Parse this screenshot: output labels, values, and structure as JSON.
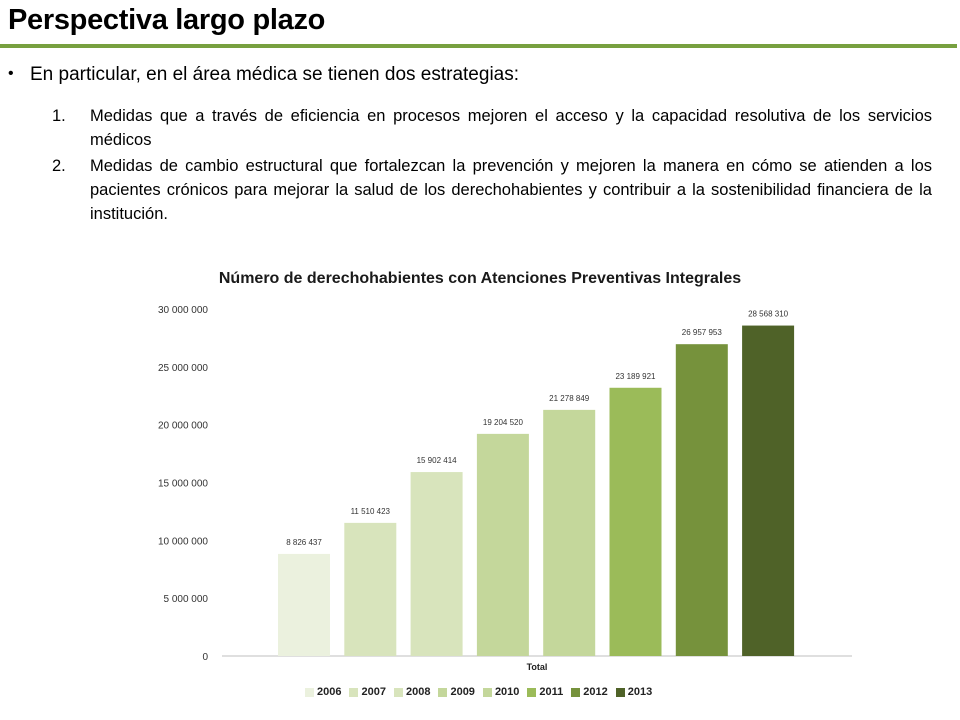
{
  "page": {
    "title": "Perspectiva largo plazo",
    "bullet": "En particular, en el área médica se tienen dos estrategias:",
    "items": [
      {
        "num": "1.",
        "text": "Medidas que a través de eficiencia en procesos mejoren el acceso y la capacidad resolutiva de los servicios médicos"
      },
      {
        "num": "2.",
        "text": "Medidas de cambio estructural que fortalezcan la prevención y mejoren la manera en cómo se atienden a los pacientes crónicos para mejorar la salud de los derechohabientes  y contribuir a la sostenibilidad financiera de la institución."
      }
    ],
    "accent_color": "#77a03f"
  },
  "chart_data": {
    "type": "bar",
    "title": "Número de derechohabientes con Atenciones Preventivas Integrales",
    "xlabel": "Total",
    "ylabel": "",
    "categories": [
      "Total"
    ],
    "ylim": [
      0,
      30000000
    ],
    "yticks": [
      "0",
      "5 000 000",
      "10 000 000",
      "15 000 000",
      "20 000 000",
      "25 000 000",
      "30 000 000"
    ],
    "ytick_values": [
      0,
      5000000,
      10000000,
      15000000,
      20000000,
      25000000,
      30000000
    ],
    "legend_position": "bottom",
    "grid": false,
    "series": [
      {
        "name": "2006",
        "values": [
          8826437
        ],
        "label": "8 826 437",
        "color": "#ebf1de"
      },
      {
        "name": "2007",
        "values": [
          11510423
        ],
        "label": "11 510 423",
        "color": "#d8e4bc"
      },
      {
        "name": "2008",
        "values": [
          15902414
        ],
        "label": "15 902 414",
        "color": "#d8e4bc"
      },
      {
        "name": "2009",
        "values": [
          19204520
        ],
        "label": "19 204 520",
        "color": "#c4d79b"
      },
      {
        "name": "2010",
        "values": [
          21278849
        ],
        "label": "21 278 849",
        "color": "#c4d79b"
      },
      {
        "name": "2011",
        "values": [
          23189921
        ],
        "label": "23 189 921",
        "color": "#9bbb59"
      },
      {
        "name": "2012",
        "values": [
          26957953
        ],
        "label": "26 957 953",
        "color": "#76923c"
      },
      {
        "name": "2013",
        "values": [
          28568310
        ],
        "label": "28 568 310",
        "color": "#4f6228"
      }
    ]
  }
}
